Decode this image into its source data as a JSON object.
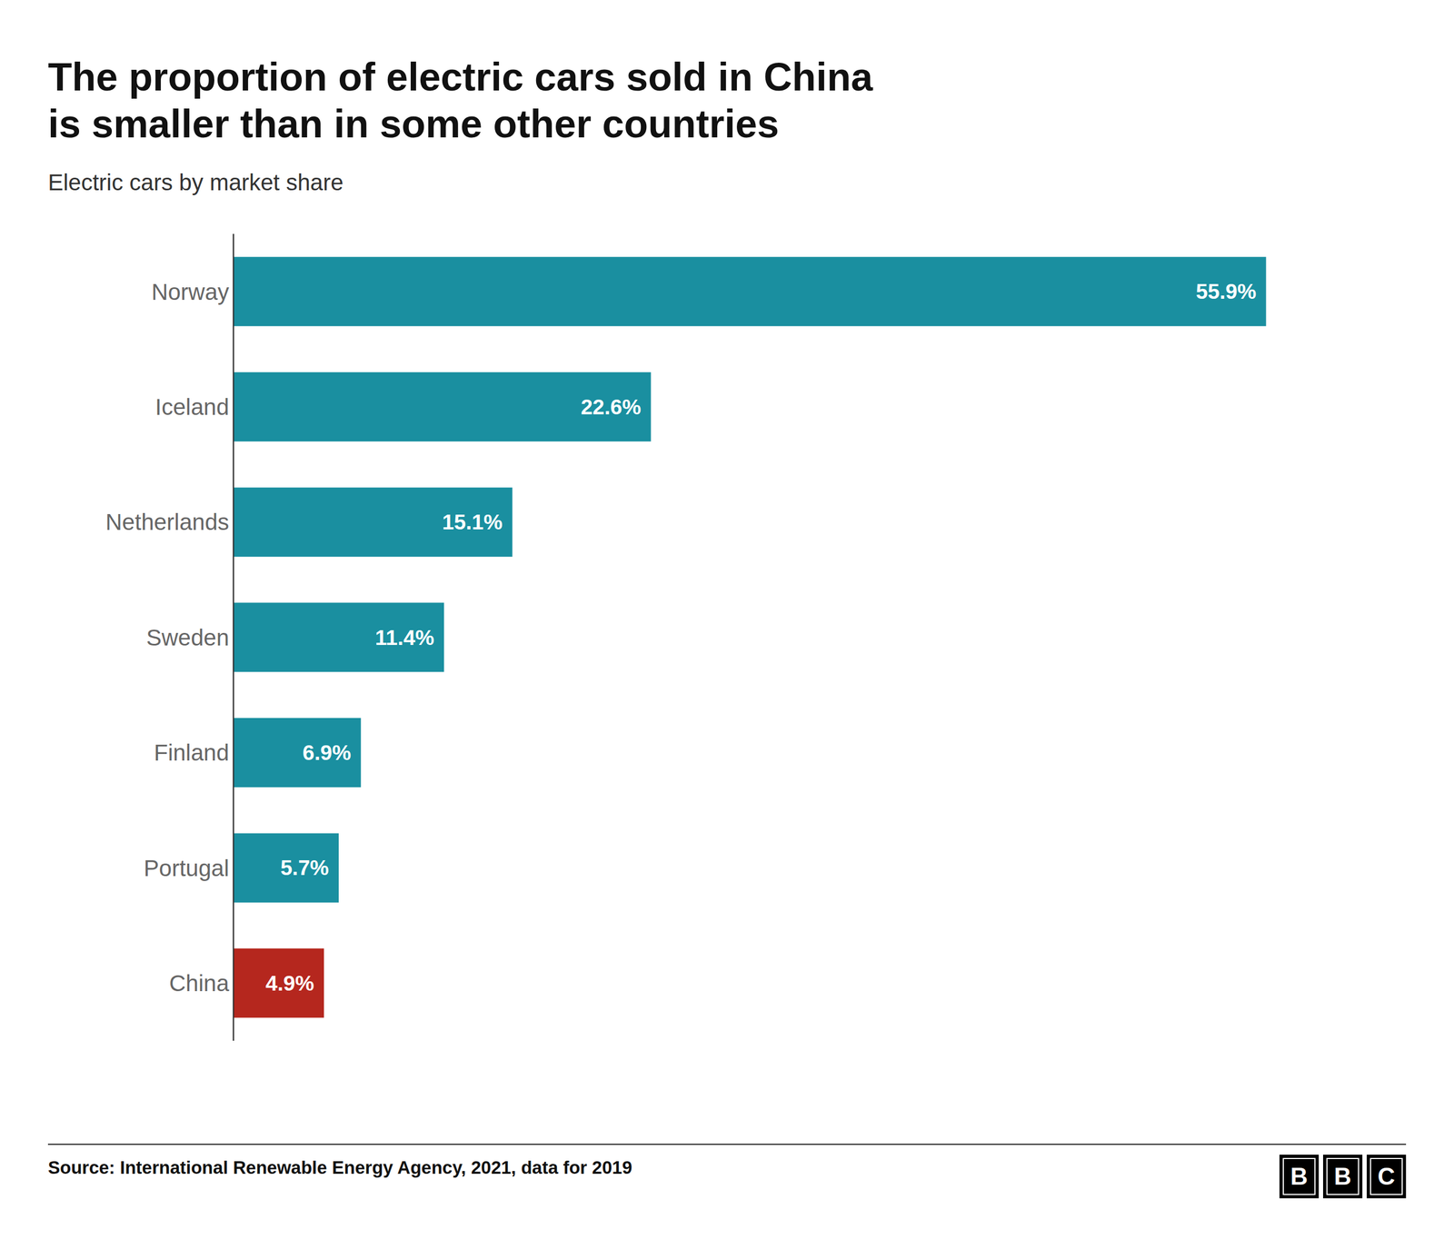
{
  "chart_data": {
    "type": "bar",
    "orientation": "horizontal",
    "title": "The proportion of electric cars sold in China\nis smaller than in some other countries",
    "subtitle": "Electric cars by market share",
    "annotations": [
      "Source: International Renewable Energy Agency, 2021, data for 2019",
      "BBC"
    ],
    "categories": [
      "Norway",
      "Iceland",
      "Netherlands",
      "Sweden",
      "Finland",
      "Portugal",
      "China"
    ],
    "values": [
      55.9,
      22.6,
      15.1,
      11.4,
      6.9,
      5.7,
      4.9
    ],
    "value_labels": [
      "55.9%",
      "22.6%",
      "15.1%",
      "11.4%",
      "6.9%",
      "5.7%",
      "4.9%"
    ],
    "colors": [
      "#1a8fa0",
      "#1a8fa0",
      "#1a8fa0",
      "#1a8fa0",
      "#1a8fa0",
      "#1a8fa0",
      "#b5271e"
    ],
    "xlim": [
      0,
      62
    ],
    "data_labels": true,
    "tick_labels": "y",
    "grid": false
  }
}
